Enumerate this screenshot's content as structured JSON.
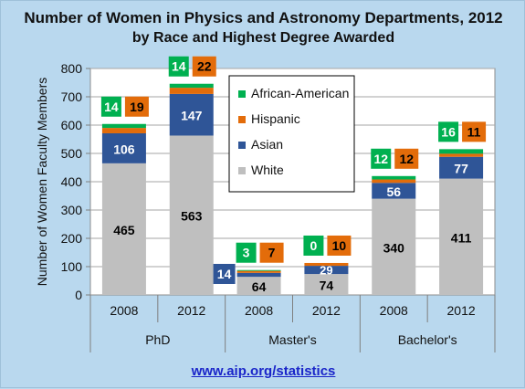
{
  "title": "Number of Women in Physics and Astronomy Departments, 2012",
  "subtitle": "by Race and Highest Degree Awarded",
  "source_link": "www.aip.org/statistics",
  "chart_data": {
    "type": "bar",
    "stacked": true,
    "title": "Number of Women in Physics and Astronomy Departments, 2012",
    "subtitle": "by Race and Highest Degree Awarded",
    "xlabel": "",
    "ylabel": "Number of Women Faculty Members",
    "ylim": [
      0,
      800
    ],
    "yticks": [
      0,
      100,
      200,
      300,
      400,
      500,
      600,
      700,
      800
    ],
    "grid": true,
    "legend_position": "top-center",
    "categories": [
      "2008",
      "2012",
      "2008",
      "2012",
      "2008",
      "2012"
    ],
    "groups": [
      {
        "label": "PhD",
        "categories": [
          "2008",
          "2012"
        ]
      },
      {
        "label": "Master's",
        "categories": [
          "2008",
          "2012"
        ]
      },
      {
        "label": "Bachelor's",
        "categories": [
          "2008",
          "2012"
        ]
      }
    ],
    "series": [
      {
        "name": "White",
        "color": "#bfbfbf",
        "values": [
          465,
          563,
          64,
          74,
          340,
          411
        ]
      },
      {
        "name": "Asian",
        "color": "#2f5597",
        "values": [
          106,
          147,
          14,
          29,
          56,
          77
        ]
      },
      {
        "name": "Hispanic",
        "color": "#e36c0a",
        "values": [
          19,
          22,
          7,
          10,
          12,
          11
        ]
      },
      {
        "name": "African-American",
        "color": "#00b050",
        "values": [
          14,
          14,
          3,
          0,
          12,
          16
        ]
      }
    ],
    "legend_order": [
      "African-American",
      "Hispanic",
      "Asian",
      "White"
    ]
  }
}
